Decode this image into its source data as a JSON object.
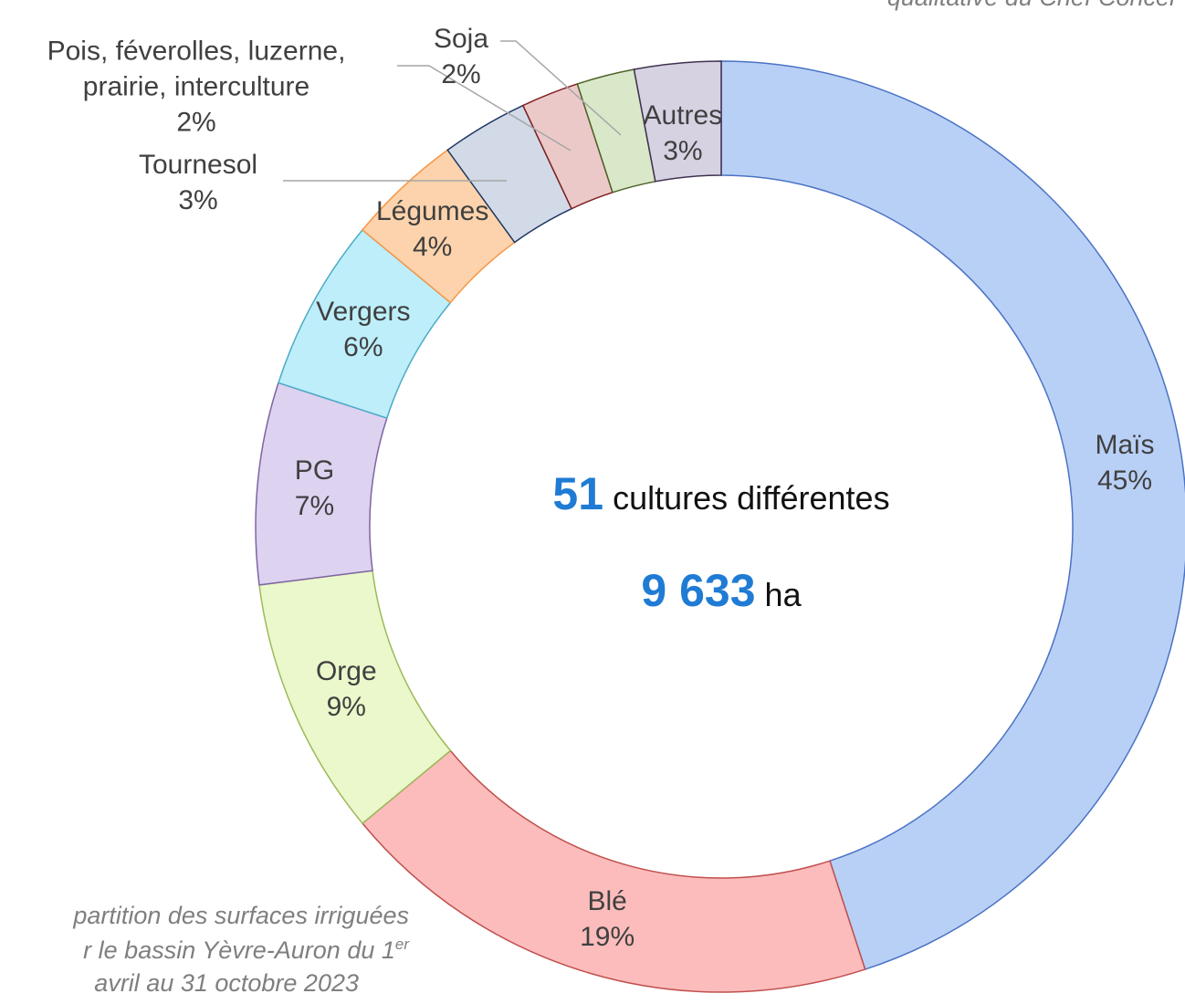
{
  "chart_data": {
    "type": "pie",
    "categories": [
      "Maïs",
      "Blé",
      "Orge",
      "PG",
      "Vergers",
      "Légumes",
      "Tournesol",
      "Pois, féverolles, luzerne, prairie, interculture",
      "Soja",
      "Autres"
    ],
    "values": [
      45,
      19,
      9,
      7,
      6,
      4,
      3,
      2,
      2,
      3
    ],
    "value_labels": [
      "45%",
      "19%",
      "9%",
      "7%",
      "6%",
      "4%",
      "3%",
      "2%",
      "2%",
      "3%"
    ],
    "colors": [
      "#b9d0f6",
      "#fcbcbc",
      "#eaf8cc",
      "#ddd2f0",
      "#bdeefa",
      "#fcd3ac",
      "#d2dae8",
      "#ecc9c9",
      "#d9e8c9",
      "#d6d2e2"
    ],
    "edge_colors": [
      "#4a73c4",
      "#c0504d",
      "#9bbb59",
      "#8064a2",
      "#4bacc6",
      "#f79646",
      "#1f3864",
      "#7f2020",
      "#4f6228",
      "#3f3151"
    ]
  },
  "center": {
    "count": "51",
    "count_label": "cultures différentes",
    "area": "9 633",
    "area_unit": "ha"
  },
  "title": "qualitative du Chef Concer",
  "caption": {
    "line1": "partition des surfaces irriguées",
    "line2": "r le bassin Yèvre-Auron du 1",
    "line2_sup": "er",
    "line3": "avril au 31 octobre 2023"
  }
}
